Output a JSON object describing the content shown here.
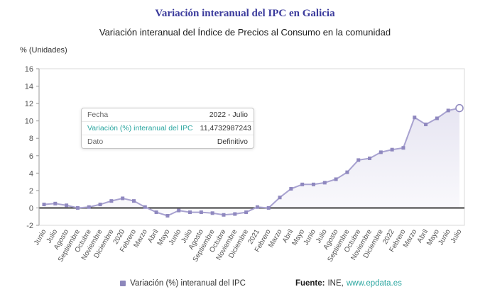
{
  "header": {
    "title": "Variación interanual del IPC en Galicia",
    "subtitle": "Variación interanual del Índice de Precios al Consumo en la comunidad"
  },
  "chart": {
    "unit_label": "% (Unidades)"
  },
  "tooltip": {
    "rows": [
      {
        "label": "Fecha",
        "value": "2022 - Julio"
      },
      {
        "label": "Variación (%) interanual del IPC",
        "value": "11,4732987243"
      },
      {
        "label": "Dato",
        "value": "Definitivo"
      }
    ]
  },
  "legend": {
    "label": "Variación (%) interanual del IPC"
  },
  "source": {
    "label_bold": "Fuente:",
    "agency": "INE,",
    "link": "www.epdata.es"
  },
  "colors": {
    "title": "#3b3b9c",
    "line": "#a8a2d0",
    "marker": "#8f88bf",
    "area": "#a8a2d0",
    "accent_teal": "#2ba6a0",
    "axis_zero": "#3c3c3c",
    "axis_label": "#555555"
  },
  "chart_data": {
    "type": "line",
    "title": "Variación interanual del IPC en Galicia",
    "subtitle": "Variación interanual del Índice de Precios al Consumo en la comunidad",
    "ylabel": "% (Unidades)",
    "xlabel": "",
    "ylim": [
      -2,
      16
    ],
    "yticks": [
      16,
      14,
      12,
      10,
      8,
      6,
      4,
      2,
      0,
      -2
    ],
    "grid": false,
    "legend_position": "bottom",
    "categories": [
      "Junio",
      "Julio",
      "Agosto",
      "Septiembre",
      "Octubre",
      "Noviembre",
      "Diciembre",
      "2020",
      "Febrero",
      "Marzo",
      "Abril",
      "Mayo",
      "Junio",
      "Julio",
      "Agosto",
      "Septiembre",
      "Octubre",
      "Noviembre",
      "Diciembre",
      "2021",
      "Febrero",
      "Marzo",
      "Abril",
      "Mayo",
      "Junio",
      "Julio",
      "Agosto",
      "Septiembre",
      "Octubre",
      "Noviembre",
      "Diciembre",
      "2022",
      "Febrero",
      "Marzo",
      "Abril",
      "Mayo",
      "Junio",
      "Julio"
    ],
    "series": [
      {
        "name": "Variación (%) interanual del IPC",
        "values": [
          0.4,
          0.5,
          0.3,
          0.0,
          0.1,
          0.4,
          0.8,
          1.1,
          0.8,
          0.1,
          -0.5,
          -0.9,
          -0.3,
          -0.5,
          -0.5,
          -0.6,
          -0.8,
          -0.7,
          -0.5,
          0.1,
          0.0,
          1.2,
          2.2,
          2.7,
          2.7,
          2.9,
          3.3,
          4.1,
          5.5,
          5.7,
          6.4,
          6.7,
          6.9,
          10.4,
          9.6,
          10.3,
          11.2,
          11.4732987243
        ]
      }
    ],
    "highlighted_point": {
      "index": 37,
      "category": "Julio",
      "year": 2022,
      "value": 11.4732987243
    }
  }
}
